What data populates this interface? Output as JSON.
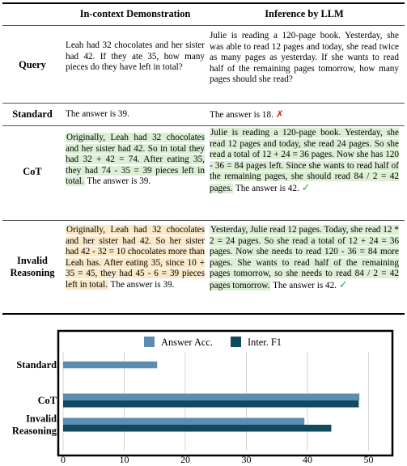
{
  "table": {
    "col_headers": [
      "In-context Demonstration",
      "Inference by LLM"
    ],
    "rows": [
      {
        "label": "Query",
        "demo": "Leah had 32 chocolates and her sister had 42. If they ate 35, how many pieces do they have left in total?",
        "inference": "Julie is reading a 120-page book. Yesterday, she was able to read 12 pages and today, she read twice as many pages as yesterday. If she wants to read half of the remaining pages tomorrow, how many pages should she read?"
      },
      {
        "label": "Standard",
        "demo": "The answer is 39.",
        "inference": "The answer is 18.",
        "mark": "✗"
      },
      {
        "label": "CoT",
        "demo_highlight": "Originally, Leah had 32 chocolates and her sister had 42. So in total they had 32 + 42 = 74. After eating 35, they had 74 - 35 = 39 pieces left in total.",
        "demo_tail": " The answer is 39.",
        "inference_highlight": "Julie is reading a 120-page book. Yesterday, she read 12 pages and today, she read 24 pages. So she read a total of 12 + 24 = 36 pages. Now she has 120 - 36 = 84 pages left. Since she wants to read half of the remaining pages, she should read 84 / 2 = 42 pages.",
        "inference_tail": " The answer is 42.",
        "mark": "✓"
      },
      {
        "label_line1": "Invalid",
        "label_line2": "Reasoning",
        "demo_highlight": "Originally, Leah had 32 chocolates and her sister had 42. So her sister had 42 - 32 = 10 chocolates more than Leah has. After eating 35, since 10 + 35 = 45, they had 45 - 6 = 39 pieces left in total.",
        "demo_tail": " The answer is 39.",
        "inference_highlight": "Yesterday, Julie read 12 pages. Today, she read 12 * 2 = 24 pages. So she read a total of 12 + 24 = 36 pages. Now she needs to read 120 - 36 = 84 more pages. She wants to read half of the remaining pages tomorrow, so she needs to read 84 / 2 = 42 pages tomorrow.",
        "inference_tail": " The answer is 42.",
        "mark": "✓"
      }
    ]
  },
  "chart_data": {
    "type": "bar",
    "orientation": "horizontal",
    "categories": [
      "Standard",
      "CoT",
      "Invalid Reasoning"
    ],
    "category_lines": [
      [
        "Standard"
      ],
      [
        "CoT"
      ],
      [
        "Invalid",
        "Reasoning"
      ]
    ],
    "series": [
      {
        "name": "Answer Acc.",
        "values": [
          15.4,
          48.5,
          39.5
        ],
        "color": "#5b8db3"
      },
      {
        "name": "Inter. F1",
        "values": [
          null,
          48.4,
          43.9
        ],
        "color": "#0f4a5f"
      }
    ],
    "xlim": [
      0,
      55
    ],
    "xticks": [
      0,
      10,
      20,
      30,
      40,
      50
    ],
    "grid": true,
    "legend": "top-center"
  },
  "colors": {
    "highlight_green": "#dcefd5",
    "highlight_orange": "#fbe8c7",
    "cross_red": "#cc1f1f",
    "check_green": "#31a83a"
  }
}
